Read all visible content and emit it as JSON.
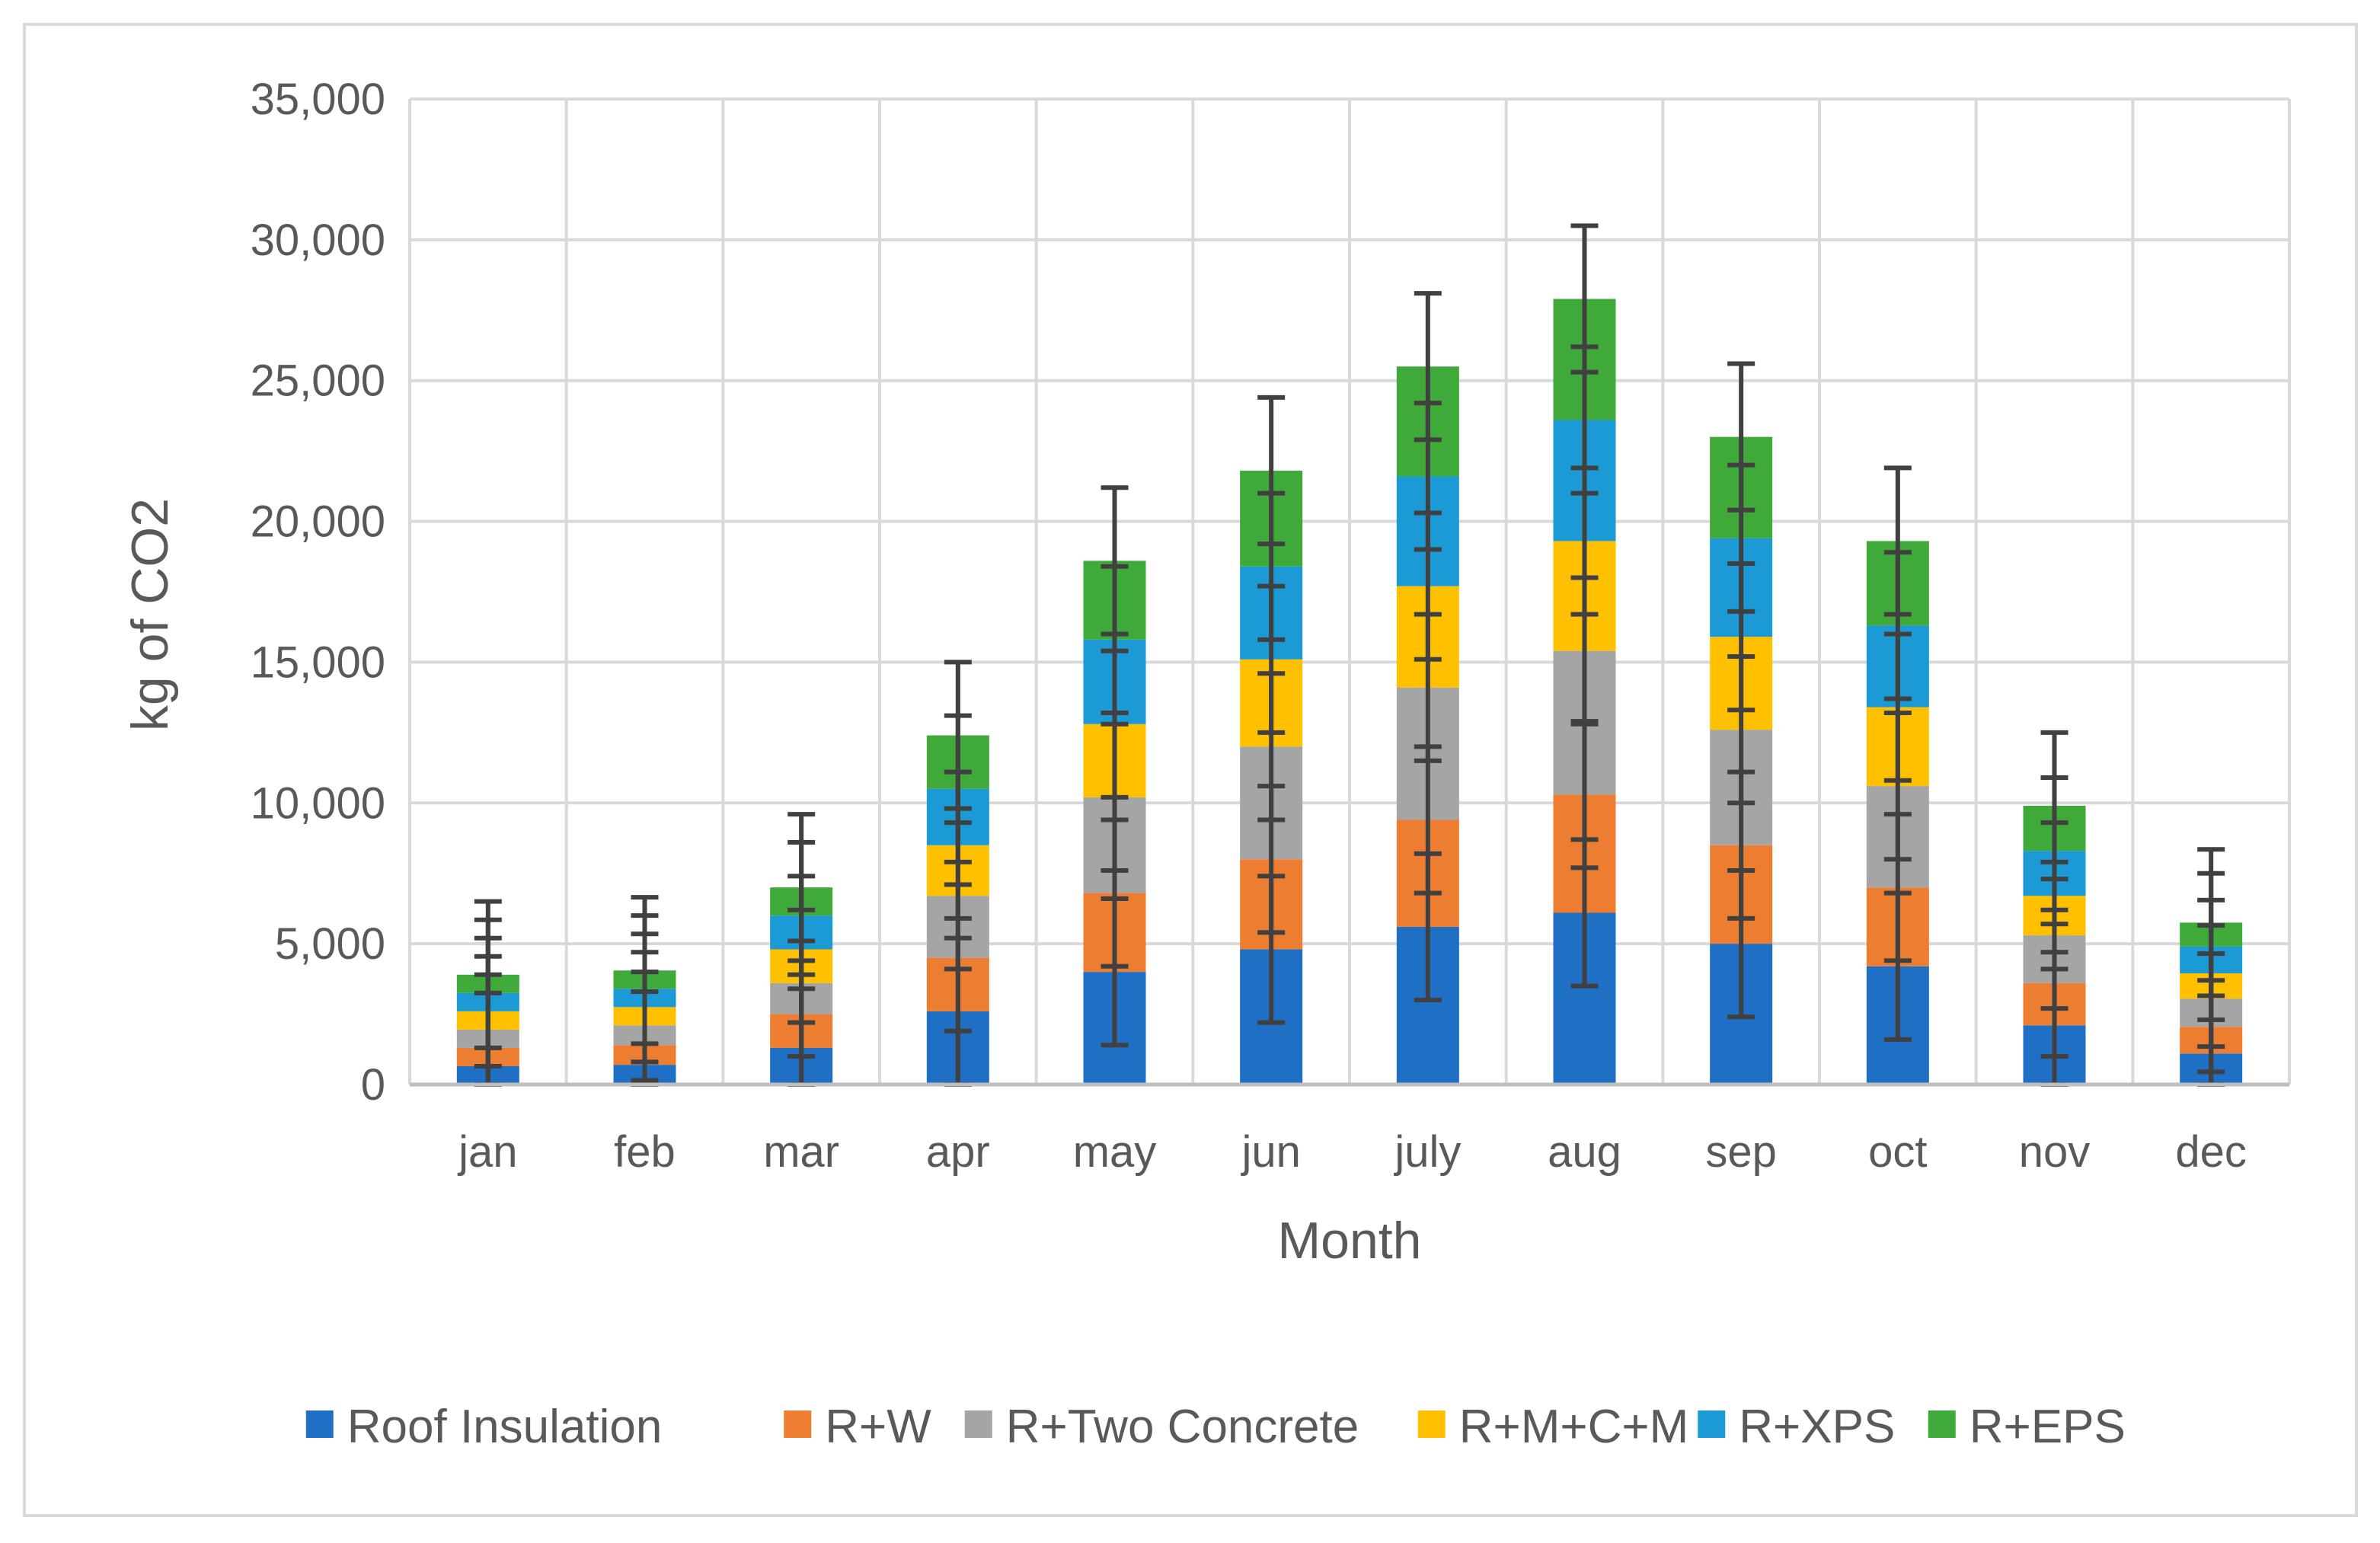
{
  "chart_data": {
    "type": "bar",
    "stacked": true,
    "title": "",
    "xlabel": "Month",
    "ylabel": "kg of CO2",
    "ylim": [
      0,
      35000
    ],
    "yticks": [
      0,
      5000,
      10000,
      15000,
      20000,
      25000,
      30000,
      35000
    ],
    "ytick_labels": [
      "0",
      "5,000",
      "10,000",
      "15,000",
      "20,000",
      "25,000",
      "30,000",
      "35,000"
    ],
    "grid": true,
    "legend_position": "bottom",
    "error_bar_on_total": 2600,
    "categories": [
      "jan",
      "feb",
      "mar",
      "apr",
      "may",
      "jun",
      "july",
      "aug",
      "sep",
      "oct",
      "nov",
      "dec"
    ],
    "series": [
      {
        "name": "Roof Insulation",
        "color": "#1f6fc5",
        "values": [
          650,
          700,
          1300,
          2600,
          4000,
          4800,
          5600,
          6100,
          5000,
          4200,
          2100,
          1100
        ]
      },
      {
        "name": "R+W",
        "color": "#ed7d31",
        "values": [
          650,
          700,
          1200,
          1900,
          2800,
          3200,
          3800,
          4200,
          3500,
          2800,
          1500,
          950
        ]
      },
      {
        "name": "R+Two Concrete",
        "color": "#a5a5a5",
        "values": [
          650,
          700,
          1100,
          2200,
          3400,
          4000,
          4700,
          5100,
          4100,
          3600,
          1700,
          1000
        ]
      },
      {
        "name": "R+M+C+M",
        "color": "#ffc000",
        "values": [
          650,
          650,
          1200,
          1800,
          2600,
          3100,
          3600,
          3900,
          3300,
          2800,
          1400,
          900
        ]
      },
      {
        "name": "R+XPS",
        "color": "#1c9ad6",
        "values": [
          650,
          650,
          1200,
          2000,
          3000,
          3300,
          3900,
          4300,
          3500,
          2900,
          1600,
          950
        ]
      },
      {
        "name": "R+EPS",
        "color": "#3faa3a",
        "values": [
          650,
          650,
          1000,
          1900,
          2800,
          3400,
          3900,
          4300,
          3600,
          3000,
          1600,
          850
        ]
      }
    ]
  }
}
